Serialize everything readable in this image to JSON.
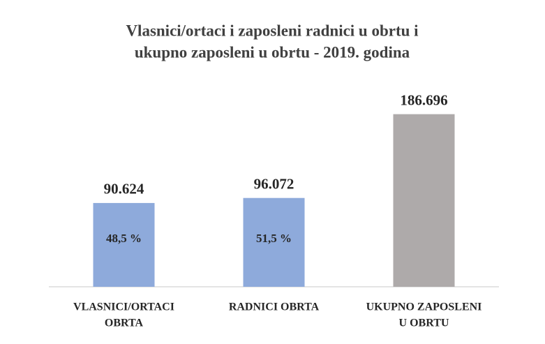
{
  "chart_data": {
    "type": "bar",
    "title": [
      "Vlasnici/ortaci  i zaposleni radnici u obrtu i",
      "ukupno zaposleni u obrtu - 2019. godina"
    ],
    "categories": [
      [
        "VLASNICI/ORTACI",
        "OBRTA"
      ],
      [
        "RADNICI OBRTA"
      ],
      [
        "UKUPNO ZAPOSLENI",
        "U OBRTU"
      ]
    ],
    "values": [
      90624,
      96072,
      186696
    ],
    "value_labels": [
      "90.624",
      "96.072",
      "186.696"
    ],
    "bar_annotations": [
      "48,5 %",
      "51,5 %",
      null
    ],
    "colors": [
      "#8eaadb",
      "#8eaadb",
      "#aeaaaa"
    ],
    "ylim": [
      0,
      200000
    ]
  }
}
